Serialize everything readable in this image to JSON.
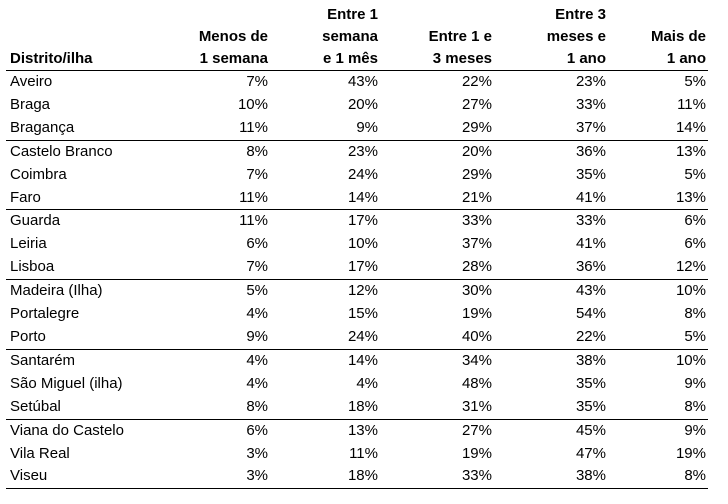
{
  "table": {
    "headers": [
      [
        "Distrito/ilha"
      ],
      [
        "Menos de",
        "1 semana"
      ],
      [
        "Entre 1",
        "semana",
        "e 1 mês"
      ],
      [
        "Entre 1 e",
        "3 meses"
      ],
      [
        "Entre 3",
        "meses e",
        "1 ano"
      ],
      [
        "Mais de",
        "1 ano"
      ]
    ],
    "rows": [
      [
        "Aveiro",
        "7%",
        "43%",
        "22%",
        "23%",
        "5%"
      ],
      [
        "Braga",
        "10%",
        "20%",
        "27%",
        "33%",
        "11%"
      ],
      [
        "Bragança",
        "11%",
        "9%",
        "29%",
        "37%",
        "14%"
      ],
      [
        "Castelo Branco",
        "8%",
        "23%",
        "20%",
        "36%",
        "13%"
      ],
      [
        "Coimbra",
        "7%",
        "24%",
        "29%",
        "35%",
        "5%"
      ],
      [
        "Faro",
        "11%",
        "14%",
        "21%",
        "41%",
        "13%"
      ],
      [
        "Guarda",
        "11%",
        "17%",
        "33%",
        "33%",
        "6%"
      ],
      [
        "Leiria",
        "6%",
        "10%",
        "37%",
        "41%",
        "6%"
      ],
      [
        "Lisboa",
        "7%",
        "17%",
        "28%",
        "36%",
        "12%"
      ],
      [
        "Madeira (Ilha)",
        "5%",
        "12%",
        "30%",
        "43%",
        "10%"
      ],
      [
        "Portalegre",
        "4%",
        "15%",
        "19%",
        "54%",
        "8%"
      ],
      [
        "Porto",
        "9%",
        "24%",
        "40%",
        "22%",
        "5%"
      ],
      [
        "Santarém",
        "4%",
        "14%",
        "34%",
        "38%",
        "10%"
      ],
      [
        "São Miguel (ilha)",
        "4%",
        "4%",
        "48%",
        "35%",
        "9%"
      ],
      [
        "Setúbal",
        "8%",
        "18%",
        "31%",
        "35%",
        "8%"
      ],
      [
        "Viana do Castelo",
        "6%",
        "13%",
        "27%",
        "45%",
        "9%"
      ],
      [
        "Vila Real",
        "3%",
        "11%",
        "19%",
        "47%",
        "19%"
      ],
      [
        "Viseu",
        "3%",
        "18%",
        "33%",
        "38%",
        "8%"
      ]
    ]
  }
}
